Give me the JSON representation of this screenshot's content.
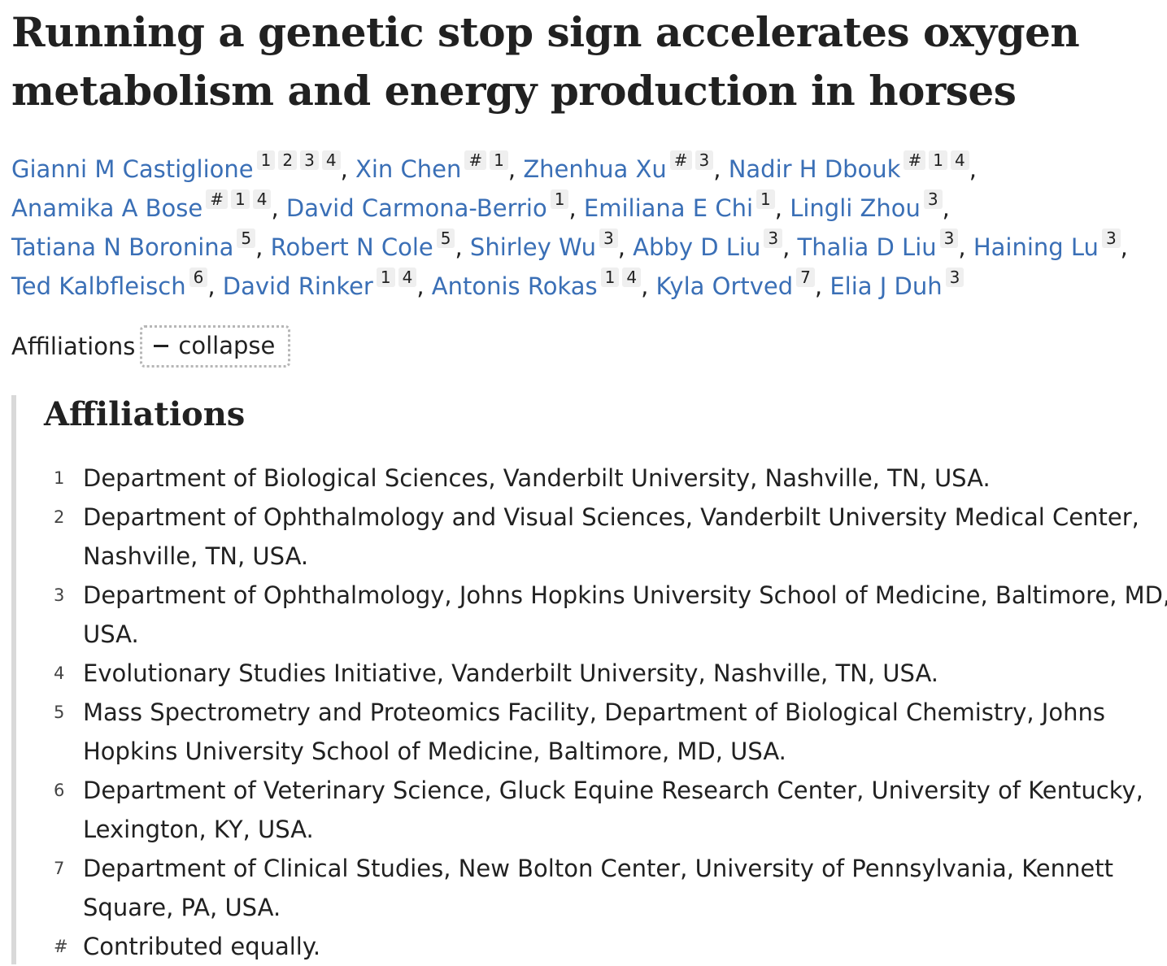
{
  "title": "Running a genetic stop sign accelerates oxygen metabolism and energy production in horses",
  "authors": [
    {
      "name": "Gianni M Castiglione",
      "refs": [
        "1",
        "2",
        "3",
        "4"
      ]
    },
    {
      "name": "Xin Chen",
      "refs": [
        "#",
        "1"
      ]
    },
    {
      "name": "Zhenhua Xu",
      "refs": [
        "#",
        "3"
      ]
    },
    {
      "name": "Nadir H Dbouk",
      "refs": [
        "#",
        "1",
        "4"
      ]
    },
    {
      "name": "Anamika A Bose",
      "refs": [
        "#",
        "1",
        "4"
      ]
    },
    {
      "name": "David Carmona-Berrio",
      "refs": [
        "1"
      ]
    },
    {
      "name": "Emiliana E Chi",
      "refs": [
        "1"
      ]
    },
    {
      "name": "Lingli Zhou",
      "refs": [
        "3"
      ]
    },
    {
      "name": "Tatiana N Boronina",
      "refs": [
        "5"
      ]
    },
    {
      "name": "Robert N Cole",
      "refs": [
        "5"
      ]
    },
    {
      "name": "Shirley Wu",
      "refs": [
        "3"
      ]
    },
    {
      "name": "Abby D Liu",
      "refs": [
        "3"
      ]
    },
    {
      "name": "Thalia D Liu",
      "refs": [
        "3"
      ]
    },
    {
      "name": "Haining Lu",
      "refs": [
        "3"
      ]
    },
    {
      "name": "Ted Kalbfleisch",
      "refs": [
        "6"
      ]
    },
    {
      "name": "David Rinker",
      "refs": [
        "1",
        "4"
      ]
    },
    {
      "name": "Antonis Rokas",
      "refs": [
        "1",
        "4"
      ]
    },
    {
      "name": "Kyla Ortved",
      "refs": [
        "7"
      ]
    },
    {
      "name": "Elia J Duh",
      "refs": [
        "3"
      ]
    }
  ],
  "author_lines": [
    [
      0,
      1,
      2,
      3
    ],
    [
      4,
      5,
      6,
      7
    ],
    [
      8,
      9,
      10,
      11,
      12,
      13
    ],
    [
      14,
      15,
      16,
      17,
      18
    ]
  ],
  "affiliations_toggle": {
    "label": "Affiliations",
    "button": "collapse"
  },
  "affiliations_panel": {
    "heading": "Affiliations",
    "items": [
      {
        "num": "1",
        "text": "Department of Biological Sciences, Vanderbilt University, Nashville, TN, USA."
      },
      {
        "num": "2",
        "text": "Department of Ophthalmology and Visual Sciences, Vanderbilt University Medical Center, Nashville, TN, USA."
      },
      {
        "num": "3",
        "text": "Department of Ophthalmology, Johns Hopkins University School of Medicine, Baltimore, MD, USA."
      },
      {
        "num": "4",
        "text": "Evolutionary Studies Initiative, Vanderbilt University, Nashville, TN, USA."
      },
      {
        "num": "5",
        "text": "Mass Spectrometry and Proteomics Facility, Department of Biological Chemistry, Johns Hopkins University School of Medicine, Baltimore, MD, USA."
      },
      {
        "num": "6",
        "text": "Department of Veterinary Science, Gluck Equine Research Center, University of Kentucky, Lexington, KY, USA."
      },
      {
        "num": "7",
        "text": "Department of Clinical Studies, New Bolton Center, University of Pennsylvania, Kennett Square, PA, USA."
      },
      {
        "num": "#",
        "text": "Contributed equally."
      }
    ]
  },
  "colors": {
    "link": "#3a6fb6",
    "text": "#212121",
    "sup_bg": "#efefef",
    "panel_border": "#d9d9d9"
  }
}
